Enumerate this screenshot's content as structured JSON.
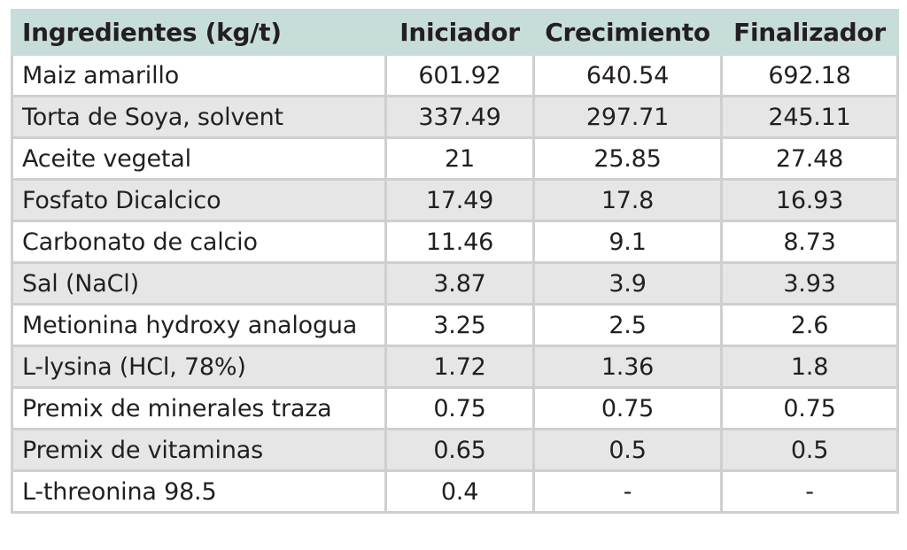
{
  "table": {
    "headers": [
      "Ingredientes (kg/t)",
      "Iniciador",
      "Crecimiento",
      "Finalizador"
    ],
    "rows": [
      [
        "Maiz amarillo",
        "601.92",
        "640.54",
        "692.18"
      ],
      [
        "Torta de Soya, solvent",
        "337.49",
        "297.71",
        "245.11"
      ],
      [
        "Aceite vegetal",
        "21",
        "25.85",
        "27.48"
      ],
      [
        "Fosfato Dicalcico",
        "17.49",
        "17.8",
        "16.93"
      ],
      [
        "Carbonato de calcio",
        "11.46",
        "9.1",
        "8.73"
      ],
      [
        "Sal (NaCl)",
        "3.87",
        "3.9",
        "3.93"
      ],
      [
        "Metionina hydroxy analogua",
        "3.25",
        "2.5",
        "2.6"
      ],
      [
        "L-lysina (HCl, 78%)",
        "1.72",
        "1.36",
        "1.8"
      ],
      [
        "Premix de minerales traza",
        "0.75",
        "0.75",
        "0.75"
      ],
      [
        "Premix de vitaminas",
        "0.65",
        "0.5",
        "0.5"
      ],
      [
        "L-threonina 98.5",
        "0.4",
        "-",
        "-"
      ]
    ]
  },
  "colors": {
    "header_bg": "#c7ddd9",
    "shaded_row_bg": "#e6e6e6",
    "border": "#cfcfcf",
    "text": "#231f20"
  }
}
